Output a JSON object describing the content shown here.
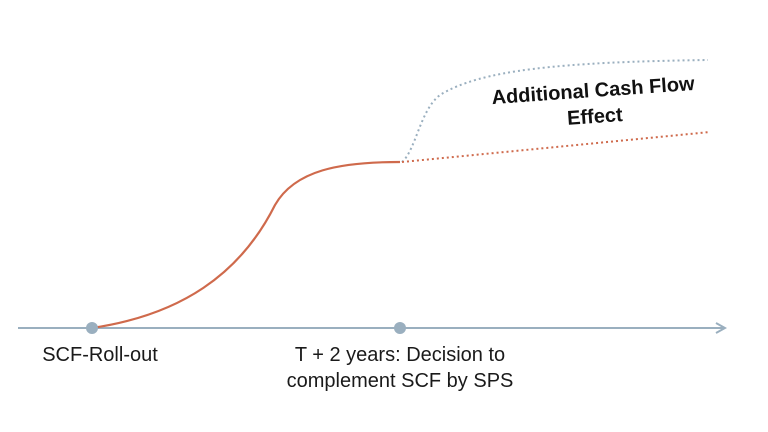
{
  "labels": {
    "rollout": "SCF-Roll-out",
    "decision": "T + 2 years: Decision to complement SCF by SPS",
    "effect": "Additional Cash Flow Effect"
  },
  "colors": {
    "axis": "#9aafbf",
    "curve": "#cf6a4c",
    "upper_dotted": "#9aafbf",
    "lower_dotted": "#cf6a4c",
    "milestone": "#9aafbf"
  }
}
